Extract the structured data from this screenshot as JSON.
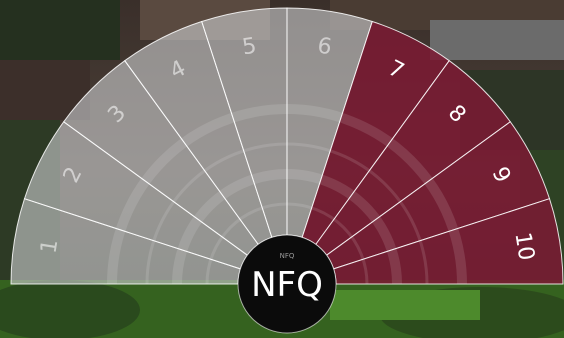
{
  "center_label": "NFQ",
  "center_small_label": "NFQ",
  "colors": {
    "grey_segment": "#c9cbcd",
    "maroon_segment": "#7b1a33",
    "hub": "#0b0b0b",
    "background_sky": "#dfe7e6",
    "background_lawn": "#3c6e2a"
  },
  "levels": [
    {
      "label": "1",
      "highlighted": false
    },
    {
      "label": "2",
      "highlighted": false
    },
    {
      "label": "3",
      "highlighted": false
    },
    {
      "label": "4",
      "highlighted": false
    },
    {
      "label": "5",
      "highlighted": false
    },
    {
      "label": "6",
      "highlighted": false
    },
    {
      "label": "7",
      "highlighted": true
    },
    {
      "label": "8",
      "highlighted": true
    },
    {
      "label": "9",
      "highlighted": true
    },
    {
      "label": "10",
      "highlighted": true
    }
  ]
}
